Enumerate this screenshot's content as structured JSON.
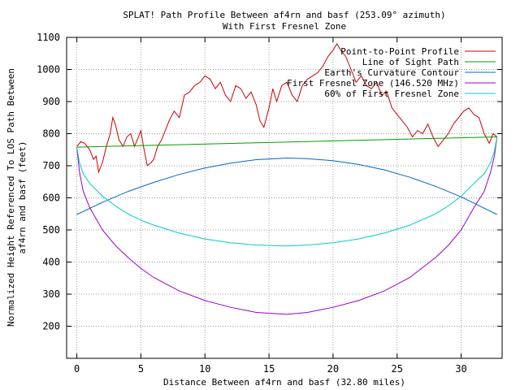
{
  "chart_data": {
    "type": "line",
    "title": "SPLAT! Path Profile Between af4rn and basf (253.09° azimuth)",
    "subtitle": "With First Fresnel Zone",
    "xlabel": "Distance Between af4rn and basf (32.80 miles)",
    "ylabel": "Normalized Height Referenced To LOS Path Between",
    "ylabel2": "af4rn and basf (feet)",
    "xlim": [
      -0.8,
      33.2
    ],
    "ylim": [
      100,
      1100
    ],
    "xticks": [
      0,
      5,
      10,
      15,
      20,
      25,
      30
    ],
    "yticks": [
      200,
      300,
      400,
      500,
      600,
      700,
      800,
      900,
      1000,
      1100
    ],
    "grid": true,
    "legend_position": "top-right",
    "series": [
      {
        "name": "Point-to-Point Profile",
        "color": "#cc0000",
        "x": [
          0,
          0.3,
          0.6,
          1.0,
          1.3,
          1.5,
          1.7,
          2.0,
          2.3,
          2.6,
          2.8,
          3.0,
          3.3,
          3.6,
          3.9,
          4.2,
          4.5,
          4.8,
          5.0,
          5.2,
          5.5,
          5.8,
          6.0,
          6.3,
          6.6,
          6.9,
          7.2,
          7.6,
          8.0,
          8.4,
          8.8,
          9.2,
          9.6,
          10.0,
          10.4,
          10.8,
          11.2,
          11.6,
          12.0,
          12.4,
          12.8,
          13.2,
          13.6,
          14.0,
          14.3,
          14.6,
          15.0,
          15.3,
          15.6,
          16.0,
          16.4,
          16.8,
          17.2,
          17.6,
          18.0,
          18.4,
          18.8,
          19.2,
          19.6,
          20.0,
          20.3,
          20.6,
          21.0,
          21.4,
          21.8,
          22.2,
          22.6,
          23.0,
          23.4,
          23.8,
          24.2,
          24.6,
          25.0,
          25.4,
          25.8,
          26.2,
          26.6,
          27.0,
          27.4,
          27.8,
          28.2,
          28.6,
          29.0,
          29.4,
          29.8,
          30.2,
          30.6,
          31.0,
          31.4,
          31.8,
          32.2,
          32.5,
          32.8
        ],
        "y": [
          760,
          775,
          770,
          750,
          720,
          730,
          680,
          710,
          760,
          800,
          850,
          830,
          780,
          760,
          790,
          800,
          760,
          790,
          810,
          760,
          700,
          710,
          720,
          760,
          780,
          810,
          840,
          870,
          850,
          920,
          930,
          950,
          960,
          980,
          970,
          940,
          960,
          920,
          900,
          950,
          940,
          910,
          930,
          890,
          840,
          820,
          880,
          940,
          900,
          950,
          960,
          920,
          900,
          950,
          970,
          980,
          990,
          1010,
          1040,
          1060,
          1080,
          1060,
          1040,
          1000,
          960,
          980,
          950,
          940,
          960,
          920,
          930,
          880,
          860,
          840,
          820,
          790,
          810,
          800,
          830,
          790,
          760,
          780,
          800,
          830,
          850,
          870,
          880,
          860,
          850,
          800,
          770,
          800,
          790
        ]
      },
      {
        "name": "Line of Sight Path",
        "color": "#00a000",
        "x": [
          0,
          32.8
        ],
        "y": [
          758,
          790
        ]
      },
      {
        "name": "Earth's Curvature Contour",
        "color": "#0066cc",
        "x": [
          0,
          2,
          4,
          6,
          8,
          10,
          12,
          14,
          16.4,
          18,
          20,
          22,
          24,
          26,
          28,
          30,
          32.8
        ],
        "y": [
          548,
          586,
          620,
          648,
          673,
          693,
          708,
          719,
          724,
          722,
          716,
          704,
          687,
          664,
          636,
          603,
          548
        ]
      },
      {
        "name": "First Fresnel Zone (146.520 MHz)",
        "color": "#9900cc",
        "x": [
          0,
          0.2,
          0.5,
          1,
          2,
          3,
          4,
          5,
          6,
          8,
          10,
          12,
          14,
          16.4,
          18,
          20,
          22,
          24,
          26,
          28,
          29,
          30,
          31,
          31.8,
          32.3,
          32.6,
          32.8
        ],
        "y": [
          758,
          680,
          620,
          570,
          500,
          452,
          414,
          380,
          352,
          310,
          280,
          259,
          243,
          237,
          243,
          259,
          280,
          310,
          352,
          414,
          452,
          500,
          570,
          620,
          680,
          730,
          790
        ]
      },
      {
        "name": "60% of First Fresnel Zone",
        "color": "#00cccc",
        "x": [
          0,
          0.2,
          0.5,
          1,
          2,
          3,
          4,
          5,
          6,
          8,
          10,
          12,
          14,
          16.4,
          18,
          20,
          22,
          24,
          26,
          28,
          29,
          30,
          31,
          31.8,
          32.3,
          32.6,
          32.8
        ],
        "y": [
          758,
          710,
          675,
          645,
          605,
          575,
          550,
          530,
          515,
          490,
          472,
          460,
          453,
          450,
          453,
          460,
          472,
          490,
          515,
          550,
          575,
          605,
          645,
          675,
          710,
          745,
          790
        ]
      }
    ]
  }
}
